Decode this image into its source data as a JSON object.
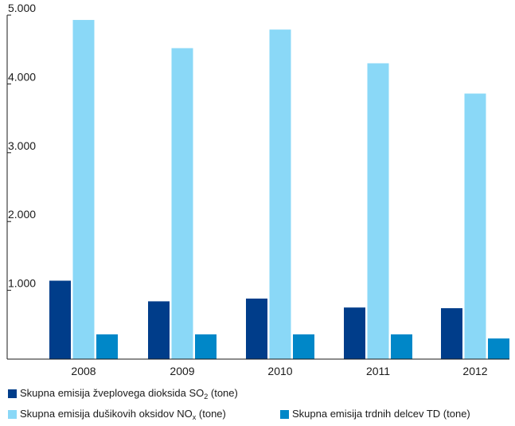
{
  "chart_data": {
    "type": "bar",
    "categories": [
      "2008",
      "2009",
      "2010",
      "2011",
      "2012"
    ],
    "ylim": [
      0,
      5000
    ],
    "yticks": [
      {
        "value": 1000,
        "label": "1.000"
      },
      {
        "value": 2000,
        "label": "2.000"
      },
      {
        "value": 3000,
        "label": "3.000"
      },
      {
        "value": 4000,
        "label": "4.000"
      },
      {
        "value": 5000,
        "label": "5.000"
      }
    ],
    "grid": false,
    "legend_position": "bottom",
    "series": [
      {
        "name": "Skupna emisija žveplovega dioksida SO2 (tone)",
        "label_main": "Skupna emisija žveplovega dioksida SO",
        "label_sub": "2",
        "label_tail": " (tone)",
        "color": "#003d8a",
        "values": [
          1140,
          840,
          880,
          750,
          740
        ]
      },
      {
        "name": "Skupna emisija dušikovih oksidov NOx (tone)",
        "label_main": "Skupna emisija dušikovih oksidov NO",
        "label_sub": "x",
        "label_tail": " (tone)",
        "color": "#8ad8f7",
        "values": [
          4930,
          4520,
          4790,
          4300,
          3860
        ]
      },
      {
        "name": "Skupna emisija trdnih delcev TD (tone)",
        "label_main": "Skupna emisija trdnih delcev TD (tone)",
        "label_sub": "",
        "label_tail": "",
        "color": "#0087c8",
        "values": [
          360,
          360,
          360,
          360,
          300
        ]
      }
    ]
  }
}
